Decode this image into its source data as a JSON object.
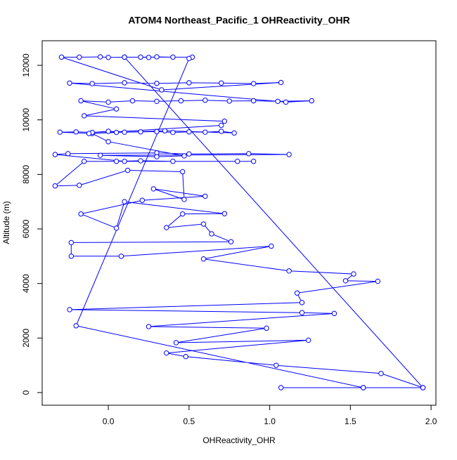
{
  "chart_data": {
    "type": "line",
    "title": "ATOM4 Northeast_Pacific_1 OHReactivity_OHR",
    "x_label": "OHReactivity_OHR",
    "y_label": "Altitude (m)",
    "x": [
      1.07,
      1.58,
      1.95,
      1.69,
      1.04,
      0.48,
      0.36,
      1.24,
      0.42,
      0.98,
      0.25,
      1.4,
      1.2,
      -0.24,
      1.2,
      1.17,
      1.67,
      1.47,
      1.52,
      1.12,
      0.59,
      1.01,
      0.08,
      -0.23,
      -0.23,
      0.76,
      0.64,
      0.59,
      0.36,
      0.46,
      0.72,
      0.1,
      0.05,
      -0.17,
      0.21,
      0.6,
      0.28,
      0.47,
      0.46,
      0.12,
      -0.18,
      -0.33,
      -0.15,
      0.05,
      0.2,
      0.4,
      0.8,
      0.9,
      0.1,
      -0.33,
      -0.25,
      0.3,
      0.5,
      0.87,
      1.12,
      -0.05,
      0.3,
      0.47,
      0.0,
      -0.1,
      -0.3,
      -0.2,
      -0.1,
      0.0,
      0.1,
      0.2,
      0.3,
      0.4,
      0.5,
      0.6,
      0.7,
      0.78,
      0.35,
      0.05,
      -0.12,
      0.7,
      0.72,
      -0.15,
      0.05,
      -0.17,
      0.0,
      0.15,
      0.3,
      0.45,
      0.6,
      0.75,
      0.9,
      1.05,
      1.26,
      1.1,
      -0.24,
      -0.1,
      0.1,
      0.3,
      0.5,
      0.7,
      0.9,
      1.07,
      0.33,
      -0.29,
      -0.18,
      -0.05,
      0.0,
      0.1,
      0.2,
      0.25,
      0.3,
      0.4,
      0.52,
      0.1,
      1.95,
      1.58,
      -0.2,
      0.5
    ],
    "series": [
      {
        "name": "OHR",
        "color": "#0000ff",
        "values": [
          180,
          180,
          180,
          700,
          1000,
          1320,
          1450,
          1920,
          1830,
          2360,
          2420,
          2900,
          2930,
          3040,
          3300,
          3650,
          4080,
          4100,
          4350,
          4460,
          4900,
          5370,
          5000,
          5000,
          5500,
          5530,
          5820,
          6180,
          6050,
          6550,
          6560,
          7000,
          6030,
          6550,
          7050,
          7200,
          7470,
          7080,
          8100,
          8150,
          7600,
          7580,
          8480,
          8480,
          8500,
          8480,
          8480,
          8480,
          8480,
          8730,
          8760,
          8790,
          8750,
          8760,
          8730,
          8700,
          8650,
          8680,
          9200,
          9500,
          9550,
          9560,
          9540,
          9580,
          9550,
          9560,
          9570,
          9540,
          9560,
          9550,
          9580,
          9520,
          9600,
          9540,
          9500,
          9800,
          9950,
          10150,
          10400,
          10700,
          10650,
          10700,
          10680,
          10700,
          10720,
          10690,
          10700,
          10680,
          10700,
          10650,
          11350,
          11330,
          11360,
          11340,
          11360,
          11350,
          11330,
          11370,
          11100,
          12300,
          12300,
          12310,
          12290,
          12300,
          12300,
          12290,
          12310,
          12300,
          12300,
          12300,
          180,
          180,
          2450,
          12250
        ]
      }
    ],
    "xlim": [
      -0.41,
      2.03
    ],
    "ylim": [
      -464,
      12902
    ],
    "xticks": [
      {
        "value": 0,
        "label": "0.0"
      },
      0.5,
      {
        "value": 1,
        "label": "1.0"
      },
      1.5,
      {
        "value": 2,
        "label": "2.0"
      }
    ],
    "yticks": [
      0,
      2000,
      4000,
      6000,
      8000,
      10000,
      12000
    ]
  }
}
